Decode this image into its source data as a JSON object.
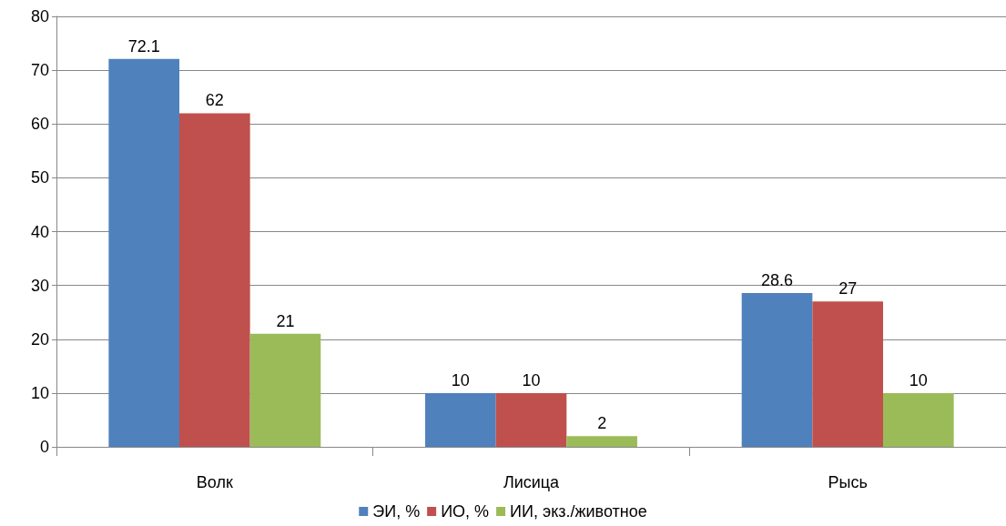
{
  "chart_data": {
    "type": "bar",
    "categories": [
      "Волк",
      "Лисица",
      "Рысь"
    ],
    "series": [
      {
        "name": "ЭИ, %",
        "color": "#4f81bd",
        "values": [
          72.1,
          10,
          28.6
        ]
      },
      {
        "name": "ИО, %",
        "color": "#c0504d",
        "values": [
          62,
          10,
          27
        ]
      },
      {
        "name": "ИИ, экз./животное",
        "color": "#9bbb59",
        "values": [
          21,
          2,
          10
        ]
      }
    ],
    "ylim": [
      0,
      80
    ],
    "yticks": [
      0,
      10,
      20,
      30,
      40,
      50,
      60,
      70,
      80
    ],
    "grid": "y",
    "legend": "bottom",
    "data_labels": true
  }
}
